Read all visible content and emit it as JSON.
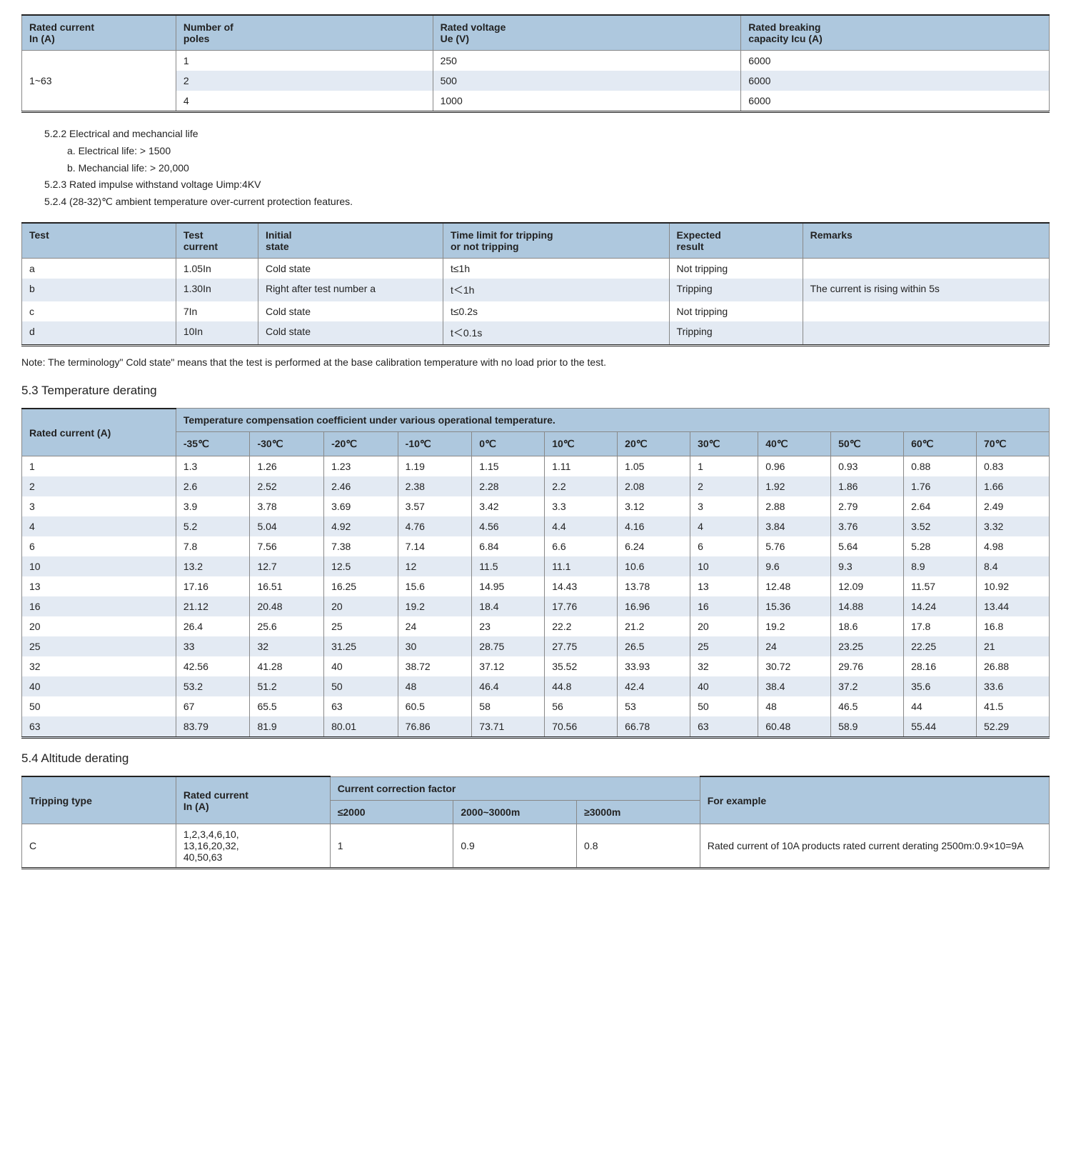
{
  "table1": {
    "headers": [
      "Rated current\nIn (A)",
      "Number of\npoles",
      "Rated voltage\nUe (V)",
      "Rated breaking\ncapacity Icu (A)"
    ],
    "span_cell": "1~63",
    "rows": [
      [
        "1",
        "250",
        "6000"
      ],
      [
        "2",
        "500",
        "6000"
      ],
      [
        "4",
        "1000",
        "6000"
      ]
    ]
  },
  "section_text": {
    "l1": "5.2.2 Electrical and mechancial life",
    "l2": "a. Electrical life: > 1500",
    "l3": "b. Mechancial life: > 20,000",
    "l4": "5.2.3 Rated impulse withstand voltage Uimp:4KV",
    "l5": "5.2.4 (28-32)℃ ambient temperature over-current protection features."
  },
  "table2": {
    "headers": [
      "Test",
      "Test\ncurrent",
      "Initial\nstate",
      "Time limit for tripping\nor not tripping",
      "Expected\nresult",
      "Remarks"
    ],
    "rows": [
      [
        "a",
        "1.05In",
        "Cold state",
        "t≤1h",
        "Not tripping",
        ""
      ],
      [
        "b",
        "1.30In",
        "Right after test number a",
        "t＜1h",
        "Tripping",
        "The current is rising within 5s"
      ],
      [
        "c",
        "7In",
        "Cold state",
        "t≤0.2s",
        "Not tripping",
        ""
      ],
      [
        "d",
        "10In",
        "Cold state",
        "t＜0.1s",
        "Tripping",
        ""
      ]
    ]
  },
  "note": "Note: The terminology\" Cold state\" means that the test is performed at the base calibration temperature with no load prior to the test.",
  "heading53": "5.3 Temperature derating",
  "table3": {
    "row_header": "Rated current (A)",
    "span_header": "Temperature compensation coefficient under various operational temperature.",
    "temps": [
      "-35℃",
      "-30℃",
      "-20℃",
      "-10℃",
      "0℃",
      "10℃",
      "20℃",
      "30℃",
      "40℃",
      "50℃",
      "60℃",
      "70℃"
    ],
    "rows": [
      [
        "1",
        "1.3",
        "1.26",
        "1.23",
        "1.19",
        "1.15",
        "1.11",
        "1.05",
        "1",
        "0.96",
        "0.93",
        "0.88",
        "0.83"
      ],
      [
        "2",
        "2.6",
        "2.52",
        "2.46",
        "2.38",
        "2.28",
        "2.2",
        "2.08",
        "2",
        "1.92",
        "1.86",
        "1.76",
        "1.66"
      ],
      [
        "3",
        "3.9",
        "3.78",
        "3.69",
        "3.57",
        "3.42",
        "3.3",
        "3.12",
        "3",
        "2.88",
        "2.79",
        "2.64",
        "2.49"
      ],
      [
        "4",
        "5.2",
        "5.04",
        "4.92",
        "4.76",
        "4.56",
        "4.4",
        "4.16",
        "4",
        "3.84",
        "3.76",
        "3.52",
        "3.32"
      ],
      [
        "6",
        "7.8",
        "7.56",
        "7.38",
        "7.14",
        "6.84",
        "6.6",
        "6.24",
        "6",
        "5.76",
        "5.64",
        "5.28",
        "4.98"
      ],
      [
        "10",
        "13.2",
        "12.7",
        "12.5",
        "12",
        "11.5",
        "11.1",
        "10.6",
        "10",
        "9.6",
        "9.3",
        "8.9",
        "8.4"
      ],
      [
        "13",
        "17.16",
        "16.51",
        "16.25",
        "15.6",
        "14.95",
        "14.43",
        "13.78",
        "13",
        "12.48",
        "12.09",
        "11.57",
        "10.92"
      ],
      [
        "16",
        "21.12",
        "20.48",
        "20",
        "19.2",
        "18.4",
        "17.76",
        "16.96",
        "16",
        "15.36",
        "14.88",
        "14.24",
        "13.44"
      ],
      [
        "20",
        "26.4",
        "25.6",
        "25",
        "24",
        "23",
        "22.2",
        "21.2",
        "20",
        "19.2",
        "18.6",
        "17.8",
        "16.8"
      ],
      [
        "25",
        "33",
        "32",
        "31.25",
        "30",
        "28.75",
        "27.75",
        "26.5",
        "25",
        "24",
        "23.25",
        "22.25",
        "21"
      ],
      [
        "32",
        "42.56",
        "41.28",
        "40",
        "38.72",
        "37.12",
        "35.52",
        "33.93",
        "32",
        "30.72",
        "29.76",
        "28.16",
        "26.88"
      ],
      [
        "40",
        "53.2",
        "51.2",
        "50",
        "48",
        "46.4",
        "44.8",
        "42.4",
        "40",
        "38.4",
        "37.2",
        "35.6",
        "33.6"
      ],
      [
        "50",
        "67",
        "65.5",
        "63",
        "60.5",
        "58",
        "56",
        "53",
        "50",
        "48",
        "46.5",
        "44",
        "41.5"
      ],
      [
        "63",
        "83.79",
        "81.9",
        "80.01",
        "76.86",
        "73.71",
        "70.56",
        "66.78",
        "63",
        "60.48",
        "58.9",
        "55.44",
        "52.29"
      ]
    ]
  },
  "heading54": "5.4 Altitude derating",
  "table4": {
    "h_trip": "Tripping type",
    "h_rated": "Rated current\nIn (A)",
    "h_span": "Current correction factor",
    "h_example": "For example",
    "sub": [
      "≤2000",
      "2000~3000m",
      "≥3000m"
    ],
    "row": [
      "C",
      "1,2,3,4,6,10,\n13,16,20,32,\n40,50,63",
      "1",
      "0.9",
      "0.8",
      "Rated current of 10A products rated current derating 2500m:0.9×10=9A"
    ]
  },
  "col_widths": {
    "t1": [
      "15%",
      "25%",
      "30%",
      "30%"
    ],
    "t2": [
      "15%",
      "8%",
      "18%",
      "22%",
      "13%",
      "24%"
    ],
    "t3_first": "15%",
    "t4": [
      "15%",
      "15%",
      "12%",
      "12%",
      "12%",
      "34%"
    ]
  }
}
